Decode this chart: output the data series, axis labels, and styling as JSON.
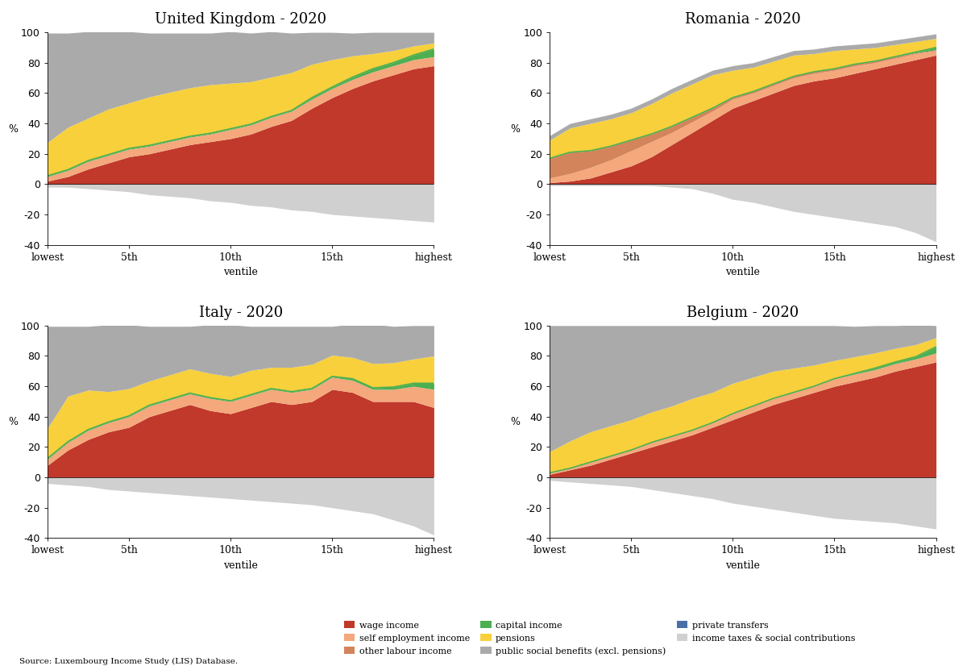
{
  "titles": [
    "United Kingdom - 2020",
    "Romania - 2020",
    "Italy - 2020",
    "Belgium - 2020"
  ],
  "ventiles": [
    1,
    2,
    3,
    4,
    5,
    6,
    7,
    8,
    9,
    10,
    11,
    12,
    13,
    14,
    15,
    16,
    17,
    18,
    19,
    20
  ],
  "xtick_positions": [
    1,
    5,
    10,
    15,
    20
  ],
  "xtick_labels": [
    "lowest",
    "5th",
    "10th",
    "15th",
    "highest"
  ],
  "ylim": [
    -40,
    100
  ],
  "yticks": [
    -40,
    -20,
    0,
    20,
    40,
    60,
    80,
    100
  ],
  "colors": {
    "wage_income": "#C1392B",
    "self_employment": "#F4A87C",
    "capital_income": "#4CAF50",
    "pensions": "#F7D03C",
    "private_transfers": "#4A6FA5",
    "income_taxes": "#D0D0D0",
    "other_labour": "#D4845A",
    "public_social": "#AAAAAA"
  },
  "UK": {
    "wage_income": [
      2,
      5,
      10,
      14,
      18,
      20,
      23,
      26,
      28,
      30,
      33,
      38,
      42,
      50,
      57,
      63,
      68,
      72,
      76,
      78
    ],
    "self_employment": [
      3,
      4,
      5,
      5,
      5,
      5,
      5,
      5,
      5,
      6,
      6,
      6,
      6,
      6,
      6,
      6,
      6,
      6,
      6,
      6
    ],
    "capital_income": [
      0.5,
      0.5,
      0.5,
      0.5,
      0.5,
      0.5,
      0.5,
      0.5,
      0.5,
      0.5,
      0.5,
      0.5,
      0.5,
      1,
      1,
      1.5,
      2,
      2,
      3,
      5
    ],
    "pensions": [
      22,
      28,
      28,
      30,
      30,
      32,
      32,
      32,
      32,
      30,
      28,
      26,
      25,
      22,
      18,
      14,
      10,
      8,
      6,
      4
    ],
    "private_transfers": [
      0,
      0,
      0,
      0,
      0,
      0,
      0,
      0,
      0,
      0,
      0,
      0,
      0,
      0,
      0,
      0,
      0,
      0,
      0,
      0
    ],
    "public_social": [
      72,
      62,
      57,
      51,
      47,
      42,
      39,
      36,
      34,
      34,
      32,
      30,
      26,
      21,
      18,
      15,
      14,
      12,
      9,
      7
    ],
    "other_labour": [
      0,
      0,
      0,
      0,
      0,
      0,
      0,
      0,
      0,
      0,
      0,
      0,
      0,
      0,
      0,
      0,
      0,
      0,
      0,
      0
    ],
    "income_taxes": [
      -2,
      -2,
      -3,
      -4,
      -5,
      -7,
      -8,
      -9,
      -11,
      -12,
      -14,
      -15,
      -17,
      -18,
      -20,
      -21,
      -22,
      -23,
      -24,
      -25
    ]
  },
  "Romania": {
    "wage_income": [
      1,
      2,
      4,
      8,
      12,
      18,
      26,
      34,
      42,
      50,
      55,
      60,
      65,
      68,
      70,
      73,
      76,
      79,
      82,
      85
    ],
    "self_employment": [
      3,
      5,
      7,
      8,
      10,
      10,
      8,
      7,
      6,
      6,
      5,
      5,
      5,
      5,
      5,
      5,
      4,
      4,
      4,
      3
    ],
    "capital_income": [
      0,
      0,
      0,
      0,
      0,
      0,
      0,
      0,
      0,
      0,
      0,
      0,
      0,
      0,
      0,
      0,
      0,
      0,
      0.5,
      1.5
    ],
    "pensions": [
      12,
      16,
      18,
      18,
      18,
      20,
      22,
      22,
      22,
      18,
      16,
      15,
      14,
      12,
      12,
      10,
      9,
      8,
      7,
      6
    ],
    "private_transfers": [
      0,
      0,
      0,
      0,
      0,
      0,
      0,
      0,
      0,
      0,
      0,
      0,
      0,
      0,
      0,
      0,
      0,
      0,
      0,
      0
    ],
    "public_social": [
      3,
      3,
      3,
      3,
      3,
      3,
      3,
      3,
      3,
      3,
      3,
      3,
      3,
      3,
      3,
      3,
      3,
      3,
      3,
      3
    ],
    "other_labour": [
      13,
      14,
      11,
      9,
      7,
      5,
      4,
      3,
      2,
      1,
      1,
      1,
      1,
      1,
      1,
      1,
      1,
      1,
      0.5,
      0.5
    ],
    "income_taxes": [
      -1,
      -1,
      -1,
      -1,
      -1,
      -1,
      -2,
      -3,
      -6,
      -10,
      -12,
      -15,
      -18,
      -20,
      -22,
      -24,
      -26,
      -28,
      -32,
      -38
    ]
  },
  "Italy": {
    "wage_income": [
      8,
      18,
      25,
      30,
      33,
      40,
      44,
      48,
      44,
      42,
      46,
      50,
      48,
      50,
      58,
      56,
      50,
      50,
      50,
      46
    ],
    "self_employment": [
      4,
      5,
      6,
      6,
      7,
      7,
      7,
      7,
      8,
      8,
      8,
      8,
      8,
      8,
      8,
      8,
      8,
      8,
      10,
      12
    ],
    "capital_income": [
      0.5,
      0.5,
      0.5,
      0.5,
      0.5,
      0.5,
      0.5,
      0.5,
      0.5,
      0.5,
      0.5,
      0.5,
      0.5,
      0.5,
      0.5,
      1,
      1,
      1.5,
      2,
      4
    ],
    "pensions": [
      20,
      30,
      26,
      20,
      18,
      16,
      16,
      16,
      16,
      16,
      16,
      14,
      16,
      16,
      14,
      14,
      16,
      16,
      16,
      18
    ],
    "private_transfers": [
      0,
      0,
      0,
      0,
      0,
      0,
      0,
      0,
      0,
      0,
      0,
      0,
      0,
      0,
      0,
      0,
      0,
      0,
      0,
      0
    ],
    "public_social": [
      67,
      46,
      42,
      44,
      42,
      36,
      32,
      28,
      32,
      34,
      29,
      27,
      27,
      25,
      19,
      22,
      26,
      24,
      22,
      20
    ],
    "other_labour": [
      0,
      0,
      0,
      0,
      0,
      0,
      0,
      0,
      0,
      0,
      0,
      0,
      0,
      0,
      0,
      0,
      0,
      0,
      0,
      0
    ],
    "income_taxes": [
      -4,
      -5,
      -6,
      -8,
      -9,
      -10,
      -11,
      -12,
      -13,
      -14,
      -15,
      -16,
      -17,
      -18,
      -20,
      -22,
      -24,
      -28,
      -32,
      -38
    ]
  },
  "Belgium": {
    "wage_income": [
      2,
      5,
      8,
      12,
      16,
      20,
      24,
      28,
      33,
      38,
      43,
      48,
      52,
      56,
      60,
      63,
      66,
      70,
      73,
      76
    ],
    "self_employment": [
      1,
      1,
      2,
      2,
      2,
      3,
      3,
      3,
      3,
      4,
      4,
      4,
      4,
      4,
      5,
      5,
      5,
      5,
      5,
      6
    ],
    "capital_income": [
      0,
      0,
      0,
      0,
      0,
      0,
      0,
      0,
      0,
      0,
      0,
      0,
      0,
      0,
      0,
      0.5,
      1,
      1,
      1.5,
      4
    ],
    "pensions": [
      14,
      18,
      20,
      20,
      20,
      20,
      20,
      21,
      20,
      20,
      19,
      18,
      16,
      14,
      12,
      11,
      10,
      9,
      8,
      6
    ],
    "private_transfers": [
      0,
      0,
      0,
      0,
      0,
      0,
      0,
      0,
      0,
      0,
      0,
      0,
      0,
      0,
      0,
      0,
      0,
      0,
      0,
      0
    ],
    "public_social": [
      83,
      76,
      70,
      66,
      62,
      57,
      53,
      48,
      44,
      38,
      34,
      30,
      28,
      26,
      23,
      20,
      18,
      15,
      13,
      8
    ],
    "other_labour": [
      0,
      0,
      0,
      0,
      0,
      0,
      0,
      0,
      0,
      0,
      0,
      0,
      0,
      0,
      0,
      0,
      0,
      0,
      0,
      0
    ],
    "income_taxes": [
      -2,
      -3,
      -4,
      -5,
      -6,
      -8,
      -10,
      -12,
      -14,
      -17,
      -19,
      -21,
      -23,
      -25,
      -27,
      -28,
      -29,
      -30,
      -32,
      -34
    ]
  },
  "legend_order": [
    "wage_income",
    "self_employment",
    "other_labour",
    "capital_income",
    "pensions",
    "public_social",
    "private_transfers",
    "income_taxes"
  ],
  "legend": {
    "wage_income": "wage income",
    "self_employment": "self employment income",
    "capital_income": "capital income",
    "pensions": "pensions",
    "private_transfers": "private transfers",
    "income_taxes": "income taxes & social contributions",
    "other_labour": "other labour income",
    "public_social": "public social benefits (excl. pensions)"
  },
  "source_text": "Source: Luxembourg Income Study (LIS) Database.",
  "bg_color": "#FFFFFF"
}
